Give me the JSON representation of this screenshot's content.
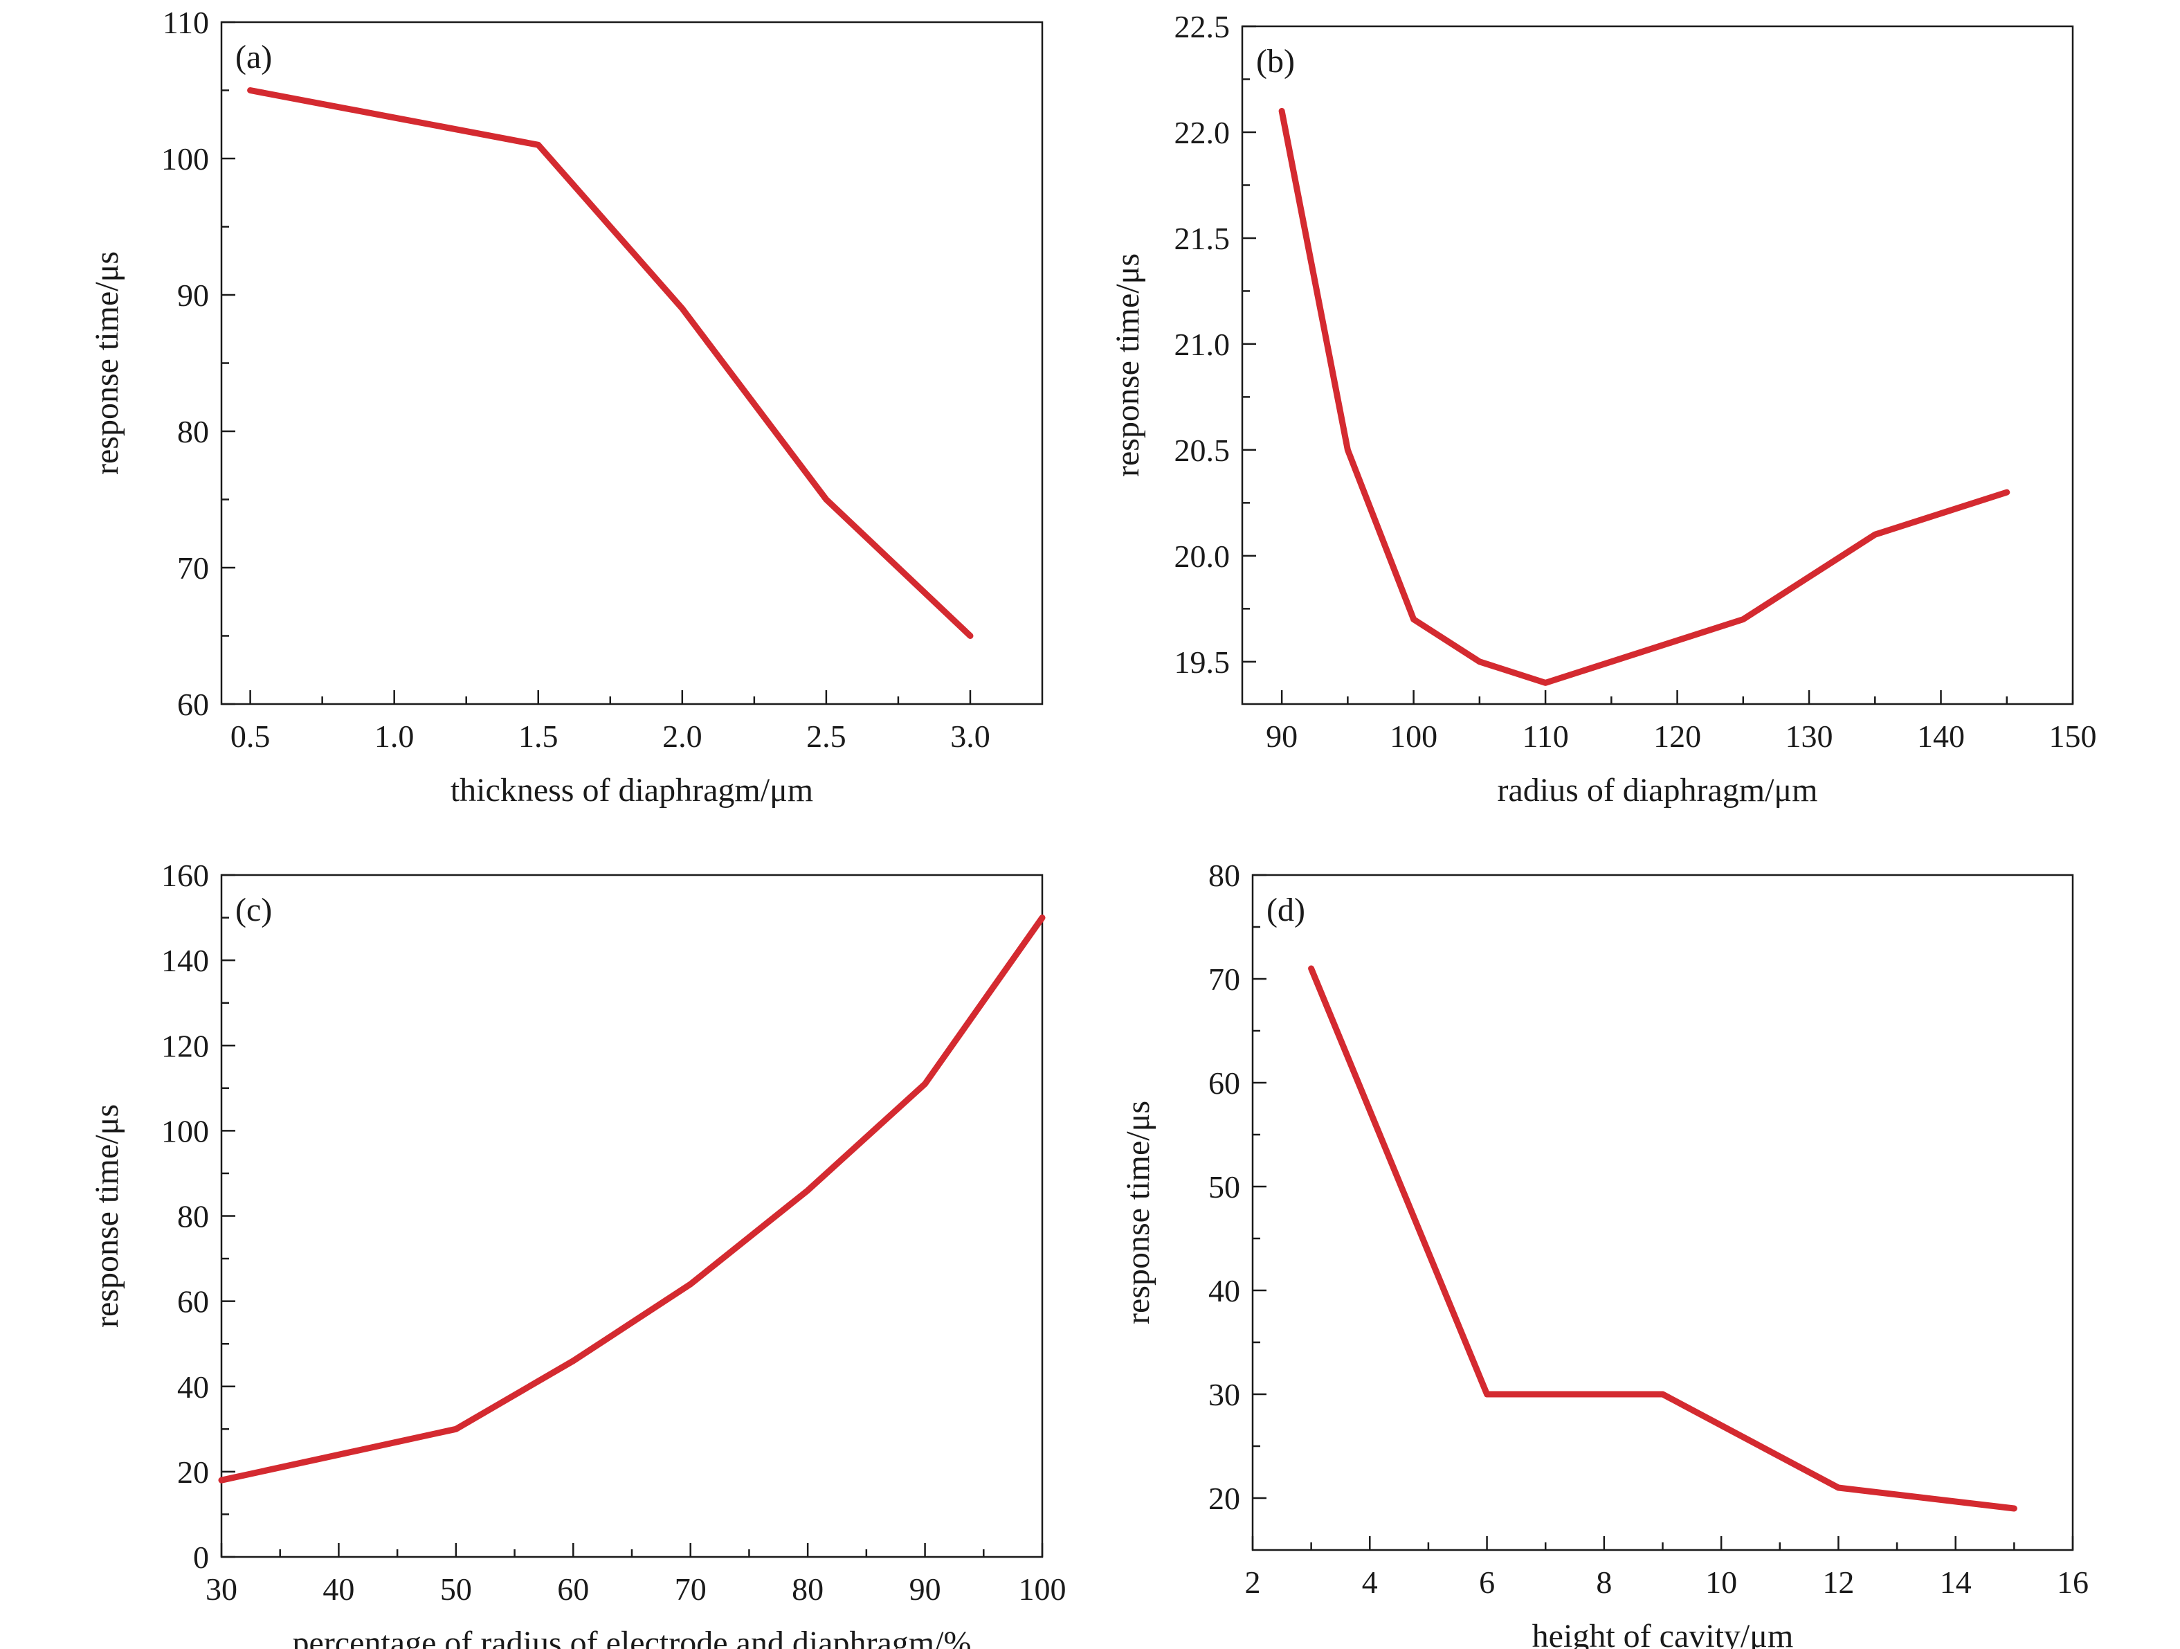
{
  "chart_data": [
    {
      "type": "line",
      "panel_label": "(a)",
      "xlabel": "thickness of diaphragm/μm",
      "ylabel": "response time/μs",
      "xlim": [
        0.4,
        3.25
      ],
      "ylim": [
        60,
        110
      ],
      "xticks": [
        0.5,
        1.0,
        1.5,
        2.0,
        2.5,
        3.0
      ],
      "xtick_labels": [
        "0.5",
        "1.0",
        "1.5",
        "2.0",
        "2.5",
        "3.0"
      ],
      "yticks": [
        60,
        70,
        80,
        90,
        100,
        110
      ],
      "ytick_labels": [
        "60",
        "70",
        "80",
        "90",
        "100",
        "110"
      ],
      "grid": false,
      "series": [
        {
          "color": "#d42a30",
          "x": [
            0.5,
            1.0,
            1.5,
            2.0,
            2.5,
            3.0
          ],
          "y": [
            105,
            103,
            101,
            89,
            75,
            65
          ]
        }
      ]
    },
    {
      "type": "line",
      "panel_label": "(b)",
      "xlabel": "radius of diaphragm/μm",
      "ylabel": "response time/μs",
      "xlim": [
        87,
        150
      ],
      "ylim": [
        19.3,
        22.5
      ],
      "xticks": [
        90,
        100,
        110,
        120,
        130,
        140,
        150
      ],
      "xtick_labels": [
        "90",
        "100",
        "110",
        "120",
        "130",
        "140",
        "150"
      ],
      "yticks": [
        19.5,
        20.0,
        20.5,
        21.0,
        21.5,
        22.0,
        22.5
      ],
      "ytick_labels": [
        "19.5",
        "20.0",
        "20.5",
        "21.0",
        "21.5",
        "22.0",
        "22.5"
      ],
      "grid": false,
      "series": [
        {
          "color": "#d42a30",
          "x": [
            90,
            95,
            100,
            105,
            110,
            115,
            120,
            125,
            130,
            135,
            140,
            145
          ],
          "y": [
            22.1,
            20.5,
            19.7,
            19.5,
            19.4,
            19.5,
            19.6,
            19.7,
            19.9,
            20.1,
            20.2,
            20.3
          ]
        }
      ]
    },
    {
      "type": "line",
      "panel_label": "(c)",
      "xlabel": "percentage of radius of electrode and diaphragm/%",
      "ylabel": "response time/μs",
      "xlim": [
        30,
        100
      ],
      "ylim": [
        0,
        160
      ],
      "xticks": [
        30,
        40,
        50,
        60,
        70,
        80,
        90,
        100
      ],
      "xtick_labels": [
        "30",
        "40",
        "50",
        "60",
        "70",
        "80",
        "90",
        "100"
      ],
      "yticks": [
        0,
        20,
        40,
        60,
        80,
        100,
        120,
        140,
        160
      ],
      "ytick_labels": [
        "0",
        "20",
        "40",
        "60",
        "80",
        "100",
        "120",
        "140",
        "160"
      ],
      "grid": false,
      "series": [
        {
          "color": "#d42a30",
          "x": [
            30,
            40,
            50,
            60,
            70,
            80,
            90,
            100
          ],
          "y": [
            18,
            24,
            30,
            46,
            64,
            86,
            111,
            150
          ]
        }
      ]
    },
    {
      "type": "line",
      "panel_label": "(d)",
      "xlabel": "height of cavity/μm",
      "ylabel": "response time/μs",
      "xlim": [
        2,
        16
      ],
      "ylim": [
        15,
        80
      ],
      "xticks": [
        2,
        4,
        6,
        8,
        10,
        12,
        14,
        16
      ],
      "xtick_labels": [
        "2",
        "4",
        "6",
        "8",
        "10",
        "12",
        "14",
        "16"
      ],
      "yticks": [
        20,
        30,
        40,
        50,
        60,
        70,
        80
      ],
      "ytick_labels": [
        "20",
        "30",
        "40",
        "50",
        "60",
        "70",
        "80"
      ],
      "grid": false,
      "series": [
        {
          "color": "#d42a30",
          "x": [
            3,
            6,
            9,
            12,
            15
          ],
          "y": [
            71,
            30,
            30,
            21,
            19
          ]
        }
      ]
    }
  ]
}
